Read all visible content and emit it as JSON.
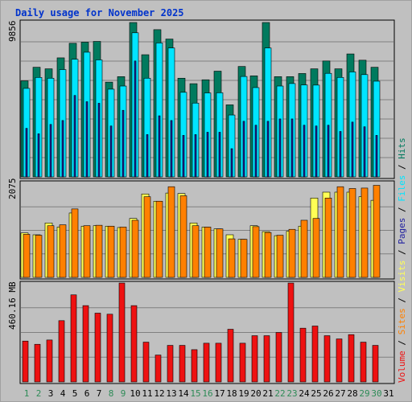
{
  "colors": {
    "background": "#c0c0c0",
    "plot_bg": "#c0c0c0",
    "grid": "#808080",
    "title": "#0033cc",
    "weekday_day": "#000000",
    "weekend_day": "#2e8b57",
    "hits": "#007a5e",
    "files": "#00e5ff",
    "pages": "#1e1ea0",
    "visits": "#ffff55",
    "sites": "#ff8000",
    "volume": "#ee1111"
  },
  "chart_data": [
    {
      "type": "bar",
      "title": "Daily usage for November 2025",
      "ymax_label": "9856",
      "ylim": [
        0,
        9856
      ],
      "categories": [
        "1",
        "2",
        "3",
        "4",
        "5",
        "6",
        "7",
        "8",
        "9",
        "10",
        "11",
        "12",
        "13",
        "14",
        "15",
        "16",
        "17",
        "18",
        "19",
        "20",
        "21",
        "22",
        "23",
        "24",
        "25",
        "26",
        "27",
        "28",
        "29",
        "30",
        "31"
      ],
      "weekend_days": [
        "1",
        "2",
        "8",
        "9",
        "15",
        "16",
        "22",
        "23",
        "29",
        "30"
      ],
      "grid": true,
      "series": [
        {
          "name": "Hits",
          "color_key": "hits",
          "values": [
            6130,
            7000,
            6900,
            7600,
            8530,
            8600,
            8650,
            6050,
            6400,
            9856,
            7800,
            9400,
            8800,
            6300,
            5950,
            6200,
            6750,
            4600,
            7050,
            6450,
            9856,
            6400,
            6400,
            6600,
            6900,
            7400,
            6900,
            7850,
            7450,
            7000,
            null
          ]
        },
        {
          "name": "Files",
          "color_key": "files",
          "values": [
            5650,
            6350,
            6300,
            6850,
            7510,
            7960,
            7470,
            5600,
            5800,
            9200,
            6300,
            8550,
            8230,
            5400,
            4710,
            5360,
            5370,
            3950,
            6410,
            5700,
            8230,
            5800,
            5960,
            5870,
            5860,
            6610,
            6350,
            6700,
            6530,
            6110,
            null
          ]
        },
        {
          "name": "Pages",
          "color_key": "pages",
          "values": [
            3100,
            2750,
            3350,
            3600,
            5200,
            4800,
            4700,
            3250,
            4250,
            7400,
            2700,
            3900,
            3600,
            2650,
            2700,
            2850,
            2850,
            1800,
            3550,
            3300,
            3550,
            3700,
            3700,
            3300,
            3250,
            3300,
            2900,
            3500,
            3200,
            2650,
            null
          ]
        }
      ]
    },
    {
      "type": "bar",
      "ymax_label": "2075",
      "ylim": [
        0,
        2075
      ],
      "categories": [
        "1",
        "2",
        "3",
        "4",
        "5",
        "6",
        "7",
        "8",
        "9",
        "10",
        "11",
        "12",
        "13",
        "14",
        "15",
        "16",
        "17",
        "18",
        "19",
        "20",
        "21",
        "22",
        "23",
        "24",
        "25",
        "26",
        "27",
        "28",
        "29",
        "30",
        "31"
      ],
      "grid": true,
      "series": [
        {
          "name": "Visits",
          "color_key": "visits",
          "values": [
            980,
            940,
            1200,
            1110,
            1420,
            1130,
            1140,
            1130,
            1100,
            1300,
            1840,
            1680,
            1860,
            1850,
            1200,
            1110,
            1070,
            940,
            840,
            1140,
            1010,
            920,
            1020,
            1130,
            1750,
            1880,
            1880,
            1880,
            1780,
            1700,
            null
          ]
        },
        {
          "name": "Sites",
          "color_key": "sites",
          "values": [
            950,
            930,
            1140,
            1160,
            1510,
            1140,
            1150,
            1130,
            1110,
            1260,
            1780,
            1680,
            2000,
            1800,
            1140,
            1110,
            1070,
            850,
            840,
            1120,
            990,
            930,
            1060,
            1260,
            1300,
            1750,
            2000,
            1960,
            1970,
            2030,
            null
          ]
        }
      ]
    },
    {
      "type": "bar",
      "ymax_label": "460.16 MB",
      "ylim": [
        0,
        460.16
      ],
      "categories": [
        "1",
        "2",
        "3",
        "4",
        "5",
        "6",
        "7",
        "8",
        "9",
        "10",
        "11",
        "12",
        "13",
        "14",
        "15",
        "16",
        "17",
        "18",
        "19",
        "20",
        "21",
        "22",
        "23",
        "24",
        "25",
        "26",
        "27",
        "28",
        "29",
        "30",
        "31"
      ],
      "grid": true,
      "series": [
        {
          "name": "Volume",
          "color_key": "volume",
          "values": [
            190,
            175,
            195,
            285,
            405,
            355,
            320,
            315,
            460,
            355,
            185,
            125,
            170,
            170,
            150,
            180,
            180,
            245,
            180,
            215,
            215,
            230,
            460,
            250,
            260,
            215,
            200,
            220,
            185,
            170,
            null
          ]
        }
      ]
    }
  ],
  "legend_right": [
    {
      "text": "Volume",
      "color_key": "volume"
    },
    {
      "text": "Sites",
      "color_key": "sites"
    },
    {
      "text": "Visits",
      "color_key": "visits"
    },
    {
      "text": "Pages",
      "color_key": "pages"
    },
    {
      "text": "Files",
      "color_key": "files"
    },
    {
      "text": "Hits",
      "color_key": "hits"
    }
  ]
}
